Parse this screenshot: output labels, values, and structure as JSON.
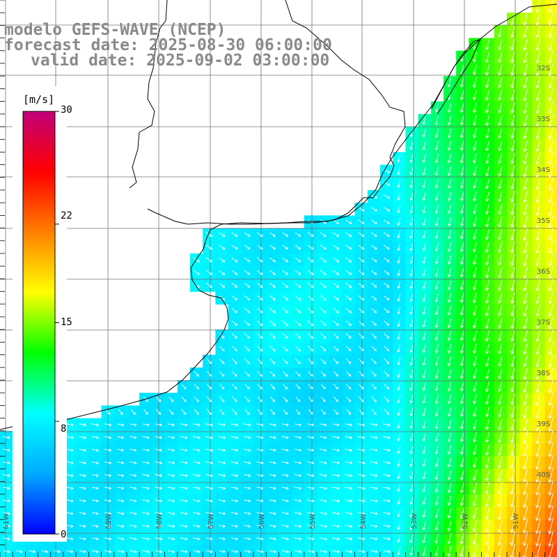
{
  "title": {
    "line1": "modelo GEFS-WAVE (NCEP)",
    "line2": "forecast date: 2025-08-30 06:00:00",
    "line3": "valid date: 2025-09-02 03:00:00"
  },
  "colorbar": {
    "unit": "[m/s]",
    "ticks": [
      {
        "value": 30,
        "label": "30"
      },
      {
        "value": 22,
        "label": "22"
      },
      {
        "value": 15,
        "label": "15"
      },
      {
        "value": 8,
        "label": "8"
      },
      {
        "value": 0,
        "label": "0"
      }
    ],
    "range": [
      0,
      30
    ],
    "stops": [
      "#0000ff",
      "#00aaff",
      "#00ffff",
      "#00ff00",
      "#ffff00",
      "#ff8000",
      "#ff0000",
      "#c0007a"
    ]
  },
  "axes": {
    "lat_labels": [
      "32S",
      "33S",
      "34S",
      "35S",
      "36S",
      "37S",
      "38S",
      "39S",
      "40S"
    ],
    "lon_labels": [
      "61W",
      "60W",
      "59W",
      "58W",
      "57W",
      "56W",
      "55W",
      "54W",
      "53W",
      "52W",
      "51W"
    ],
    "grid": true
  },
  "map": {
    "variable": "10 m wind speed and direction",
    "land_color": "#ffffff",
    "coast_color": "#000000",
    "grid_color": "#707070",
    "arrow_color": "#ffffff"
  }
}
